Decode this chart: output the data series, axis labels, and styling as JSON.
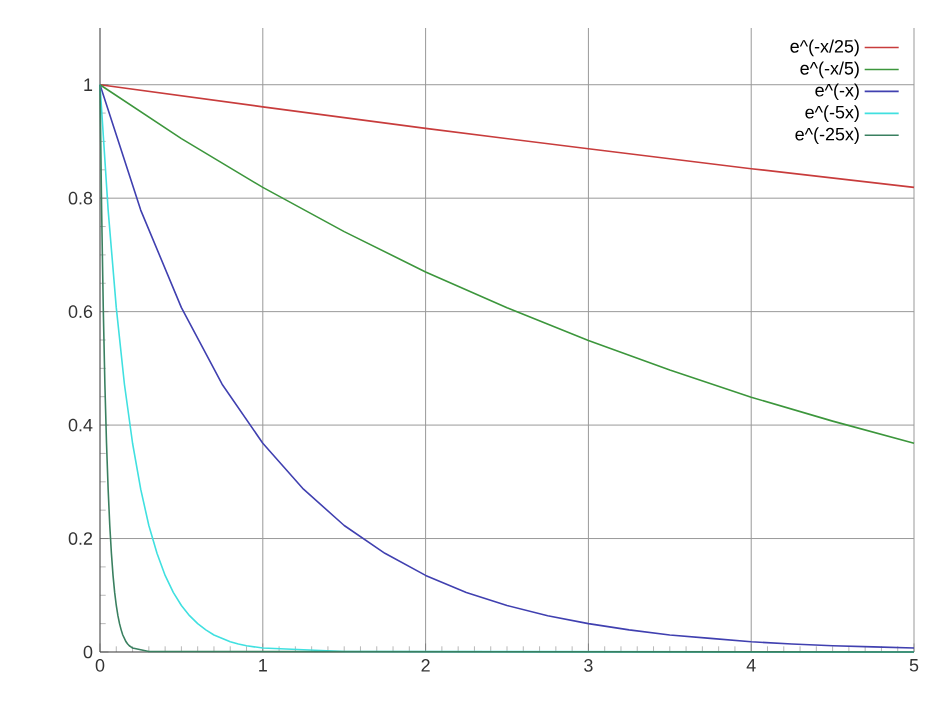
{
  "chart_data": {
    "type": "line",
    "xlim": [
      0,
      5
    ],
    "ylim": [
      0,
      1.1
    ],
    "xticks": [
      0,
      1,
      2,
      3,
      4,
      5
    ],
    "yticks": [
      0,
      0.2,
      0.4,
      0.6,
      0.8,
      1
    ],
    "grid": true,
    "legend": "top right",
    "marker": "none",
    "line_style": "solid",
    "series": [
      {
        "name": "e^(-x/25)",
        "color": "#c83c3c",
        "x": [
          0,
          1,
          2,
          3,
          4,
          5
        ],
        "values": [
          1,
          0.961,
          0.923,
          0.887,
          0.852,
          0.819
        ]
      },
      {
        "name": "e^(-x/5)",
        "color": "#3c963c",
        "x": [
          0,
          0.5,
          1,
          1.5,
          2,
          2.5,
          3,
          3.5,
          4,
          4.5,
          5
        ],
        "values": [
          1,
          0.905,
          0.819,
          0.741,
          0.67,
          0.607,
          0.549,
          0.497,
          0.449,
          0.407,
          0.368
        ]
      },
      {
        "name": "e^(-x)",
        "color": "#4040b0",
        "x": [
          0,
          0.25,
          0.5,
          0.75,
          1,
          1.25,
          1.5,
          1.75,
          2,
          2.25,
          2.5,
          2.75,
          3,
          3.25,
          3.5,
          3.75,
          4,
          4.25,
          4.5,
          4.75,
          5
        ],
        "values": [
          1,
          0.779,
          0.607,
          0.472,
          0.368,
          0.287,
          0.223,
          0.174,
          0.135,
          0.105,
          0.082,
          0.064,
          0.05,
          0.039,
          0.03,
          0.024,
          0.018,
          0.014,
          0.011,
          0.009,
          0.007
        ]
      },
      {
        "name": "e^(-5x)",
        "color": "#40e0e0",
        "x": [
          0,
          0.05,
          0.1,
          0.15,
          0.2,
          0.25,
          0.3,
          0.35,
          0.4,
          0.45,
          0.5,
          0.55,
          0.6,
          0.65,
          0.7,
          0.75,
          0.8,
          0.85,
          0.9,
          0.95,
          1,
          1.5,
          5
        ],
        "values": [
          1,
          0.779,
          0.607,
          0.472,
          0.368,
          0.287,
          0.223,
          0.174,
          0.135,
          0.105,
          0.082,
          0.064,
          0.05,
          0.039,
          0.03,
          0.024,
          0.018,
          0.014,
          0.011,
          0.009,
          0.007,
          0.001,
          0
        ]
      },
      {
        "name": "e^(-25x)",
        "color": "#3a8060",
        "x": [
          0,
          0.01,
          0.02,
          0.03,
          0.04,
          0.05,
          0.06,
          0.07,
          0.08,
          0.09,
          0.1,
          0.11,
          0.12,
          0.13,
          0.14,
          0.15,
          0.16,
          0.17,
          0.18,
          0.19,
          0.2,
          0.3,
          5
        ],
        "values": [
          1,
          0.779,
          0.607,
          0.472,
          0.368,
          0.287,
          0.223,
          0.174,
          0.135,
          0.105,
          0.082,
          0.064,
          0.05,
          0.039,
          0.03,
          0.024,
          0.018,
          0.014,
          0.011,
          0.009,
          0.007,
          0.001,
          0
        ]
      }
    ]
  }
}
